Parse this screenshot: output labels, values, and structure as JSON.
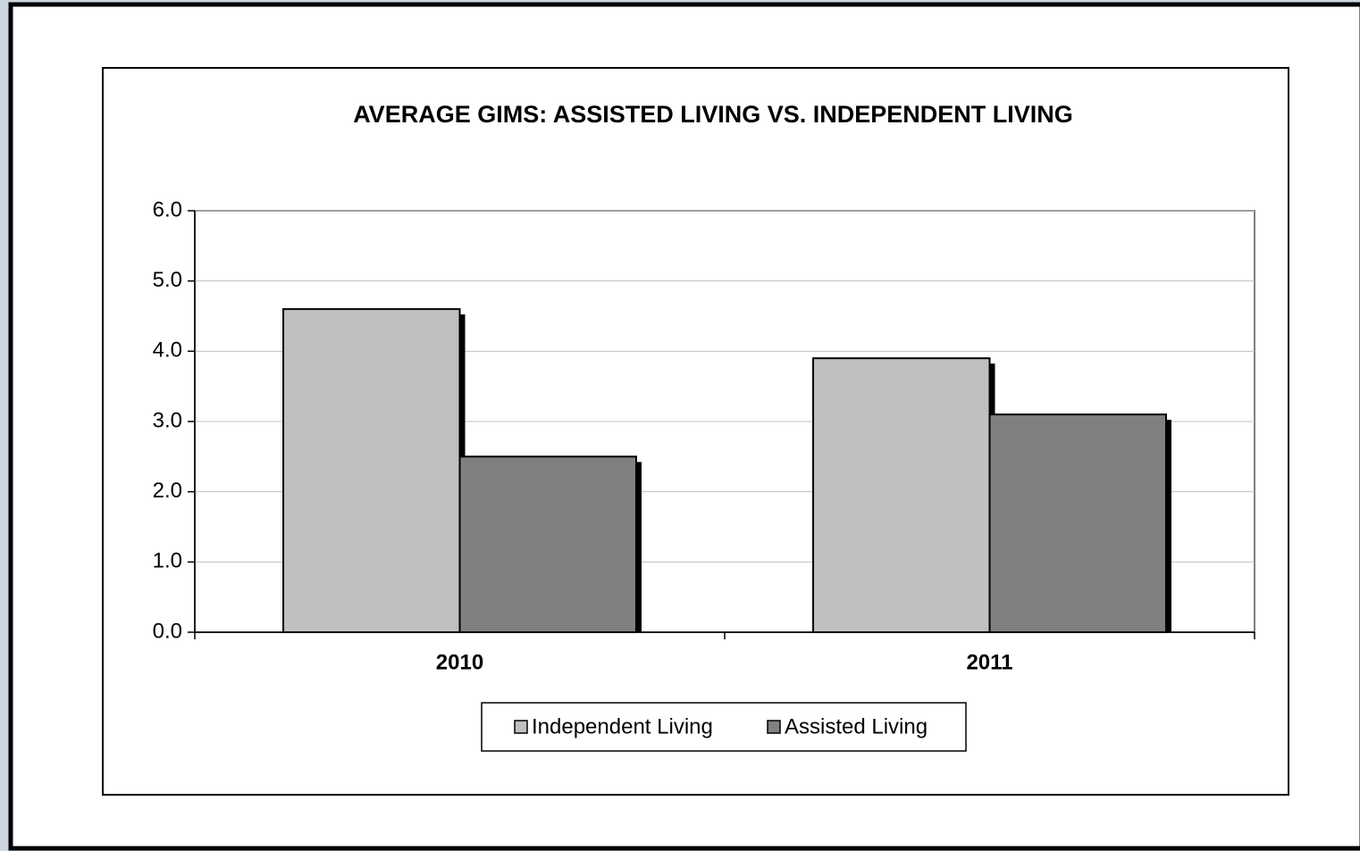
{
  "chart_data": {
    "type": "bar",
    "title": "AVERAGE GIMS: ASSISTED LIVING VS. INDEPENDENT LIVING",
    "categories": [
      "2010",
      "2011"
    ],
    "series": [
      {
        "name": "Independent Living",
        "color": "#c0c0c0",
        "values": [
          4.6,
          3.9
        ]
      },
      {
        "name": "Assisted Living",
        "color": "#808080",
        "values": [
          2.5,
          3.1
        ]
      }
    ],
    "ylim": [
      0,
      6
    ],
    "yticks": [
      {
        "value": 0,
        "label": "0.0"
      },
      {
        "value": 1,
        "label": "1.0"
      },
      {
        "value": 2,
        "label": "2.0"
      },
      {
        "value": 3,
        "label": "3.0"
      },
      {
        "value": 4,
        "label": "4.0"
      },
      {
        "value": 5,
        "label": "5.0"
      },
      {
        "value": 6,
        "label": "6.0"
      }
    ],
    "grid": true,
    "legend": "bottom"
  }
}
